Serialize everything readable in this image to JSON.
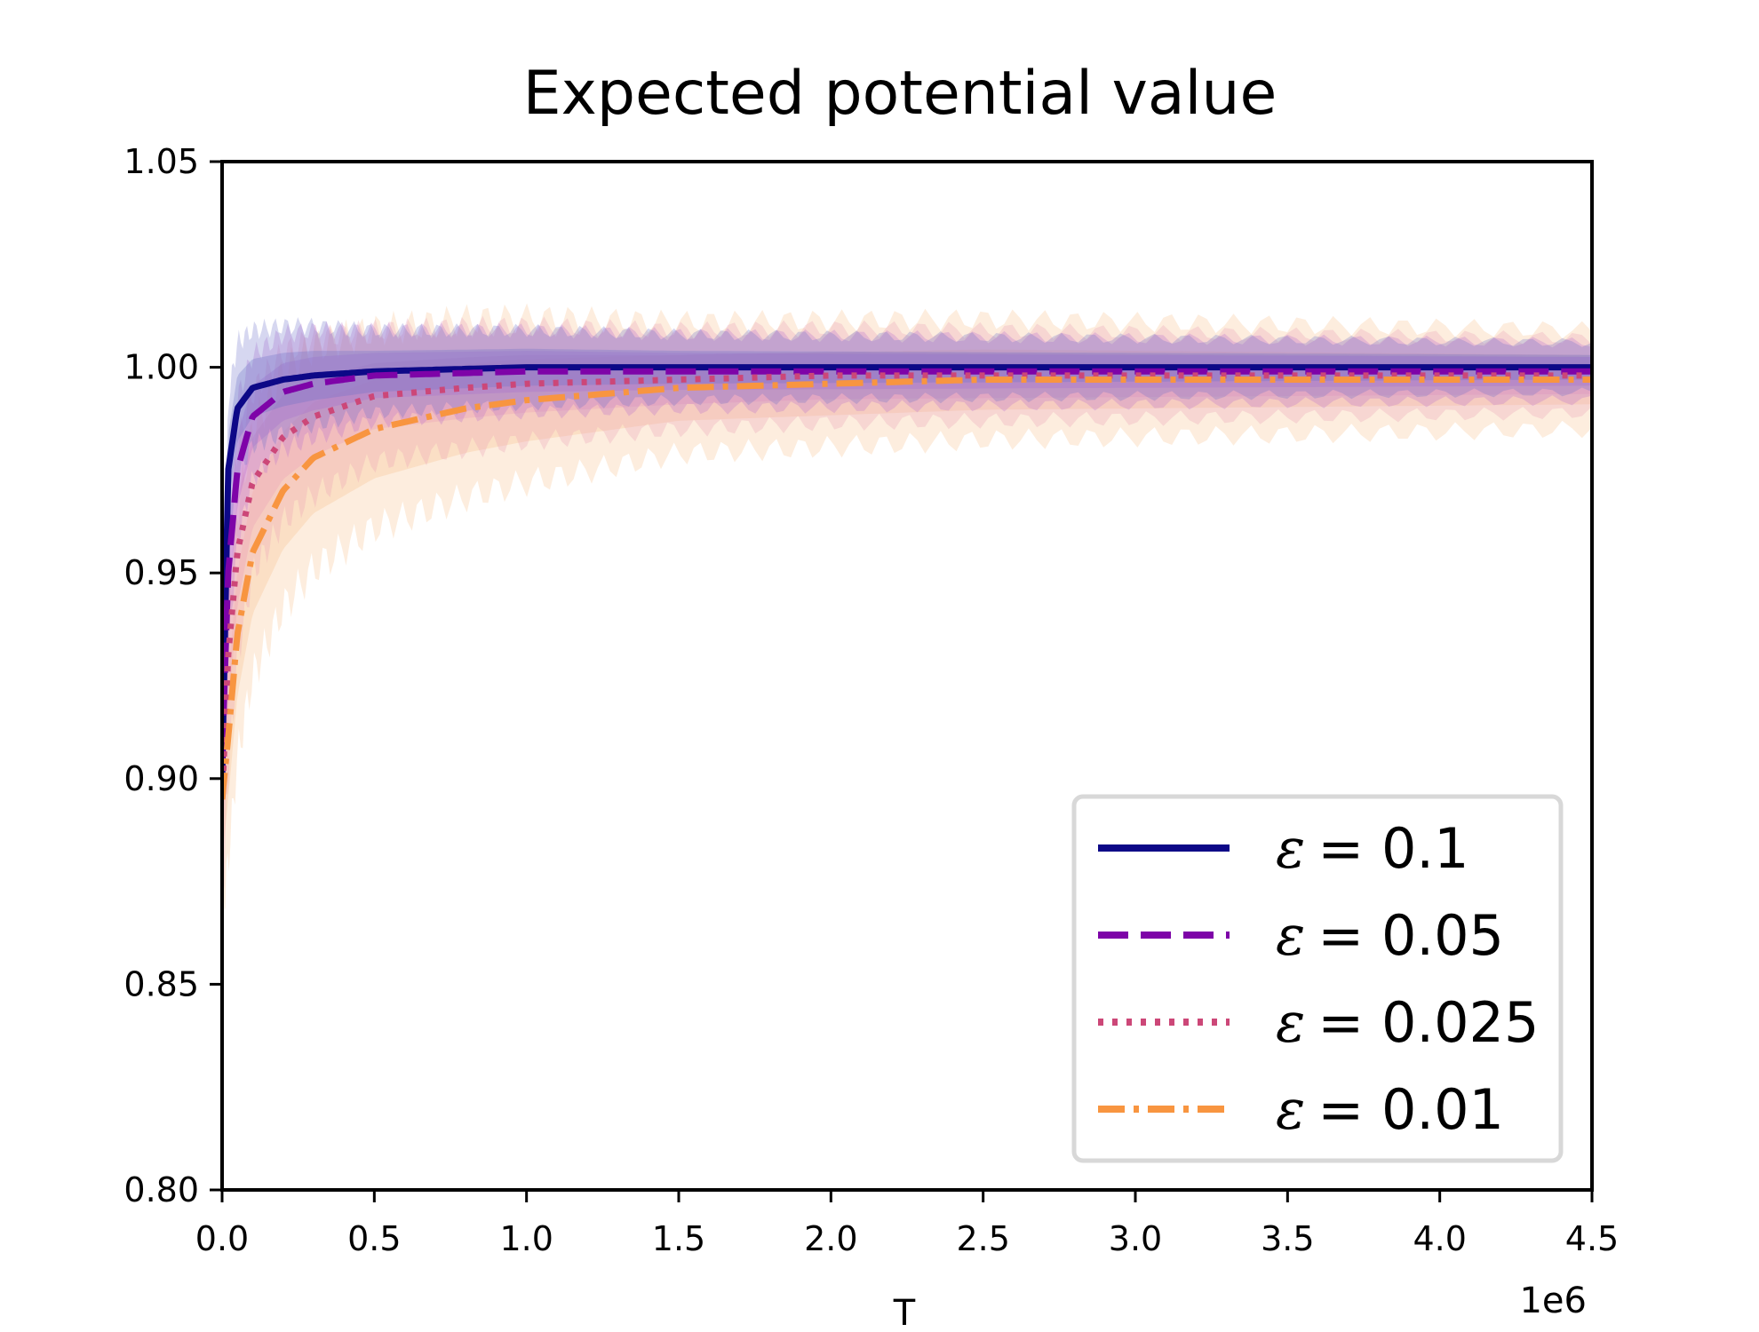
{
  "chart_data": {
    "type": "line",
    "title": "Expected potential value",
    "xlabel": "T",
    "x_offset_label": "1e6",
    "ylabel": "",
    "xlim": [
      0.0,
      4.5
    ],
    "ylim": [
      0.8,
      1.05
    ],
    "x_ticks": [
      "0.0",
      "0.5",
      "1.0",
      "1.5",
      "2.0",
      "2.5",
      "3.0",
      "3.5",
      "4.0",
      "4.5"
    ],
    "y_ticks": [
      "0.80",
      "0.85",
      "0.90",
      "0.95",
      "1.00",
      "1.05"
    ],
    "x_tick_values": [
      0.0,
      0.5,
      1.0,
      1.5,
      2.0,
      2.5,
      3.0,
      3.5,
      4.0,
      4.5
    ],
    "y_tick_values": [
      0.8,
      0.85,
      0.9,
      0.95,
      1.0,
      1.05
    ],
    "legend_position": "lower-right",
    "series": [
      {
        "name": "ε = 0.1",
        "legend_prefix": "ε",
        "legend_value": "= 0.1",
        "color": "#0d0887",
        "style": "solid",
        "band_color": "#6a6fc8",
        "band_halfwidth": [
          0.018,
          0.014,
          0.01,
          0.008,
          0.006
        ],
        "x": [
          0.0,
          0.02,
          0.05,
          0.1,
          0.2,
          0.3,
          0.5,
          1.0,
          1.5,
          2.0,
          2.5,
          3.0,
          3.5,
          4.0,
          4.5
        ],
        "y": [
          0.9,
          0.975,
          0.99,
          0.995,
          0.997,
          0.998,
          0.999,
          1.0,
          1.0,
          1.0,
          1.0,
          1.0,
          1.0,
          1.0,
          1.0
        ]
      },
      {
        "name": "ε = 0.05",
        "legend_prefix": "ε",
        "legend_value": "= 0.05",
        "color": "#7e03a8",
        "style": "dashed",
        "band_color": "#b86bd0",
        "band_halfwidth": [
          0.02,
          0.015,
          0.011,
          0.009,
          0.007
        ],
        "x": [
          0.0,
          0.02,
          0.05,
          0.1,
          0.2,
          0.3,
          0.5,
          1.0,
          1.5,
          2.0,
          2.5,
          3.0,
          3.5,
          4.0,
          4.5
        ],
        "y": [
          0.905,
          0.95,
          0.975,
          0.988,
          0.994,
          0.996,
          0.998,
          0.999,
          0.999,
          0.999,
          0.999,
          0.999,
          0.999,
          0.999,
          0.999
        ]
      },
      {
        "name": "ε = 0.025",
        "legend_prefix": "ε",
        "legend_value": "= 0.025",
        "color": "#cc4778",
        "style": "dotted",
        "band_color": "#e89ab5",
        "band_halfwidth": [
          0.03,
          0.022,
          0.016,
          0.012,
          0.009
        ],
        "x": [
          0.0,
          0.02,
          0.05,
          0.1,
          0.2,
          0.3,
          0.5,
          0.8,
          1.0,
          1.5,
          2.0,
          2.5,
          3.0,
          3.5,
          4.0,
          4.5
        ],
        "y": [
          0.895,
          0.93,
          0.955,
          0.972,
          0.983,
          0.988,
          0.993,
          0.995,
          0.996,
          0.997,
          0.998,
          0.998,
          0.998,
          0.998,
          0.998,
          0.998
        ]
      },
      {
        "name": "ε = 0.01",
        "legend_prefix": "ε",
        "legend_value": "= 0.01",
        "color": "#f89540",
        "style": "dashdot",
        "band_color": "#f9c08a",
        "band_halfwidth": [
          0.03,
          0.03,
          0.024,
          0.016,
          0.012
        ],
        "x": [
          0.0,
          0.02,
          0.05,
          0.1,
          0.2,
          0.3,
          0.5,
          0.8,
          1.0,
          1.5,
          2.0,
          2.5,
          3.0,
          3.5,
          4.0,
          4.5
        ],
        "y": [
          0.895,
          0.91,
          0.935,
          0.955,
          0.97,
          0.978,
          0.985,
          0.99,
          0.992,
          0.995,
          0.996,
          0.997,
          0.997,
          0.997,
          0.997,
          0.997
        ]
      }
    ]
  }
}
